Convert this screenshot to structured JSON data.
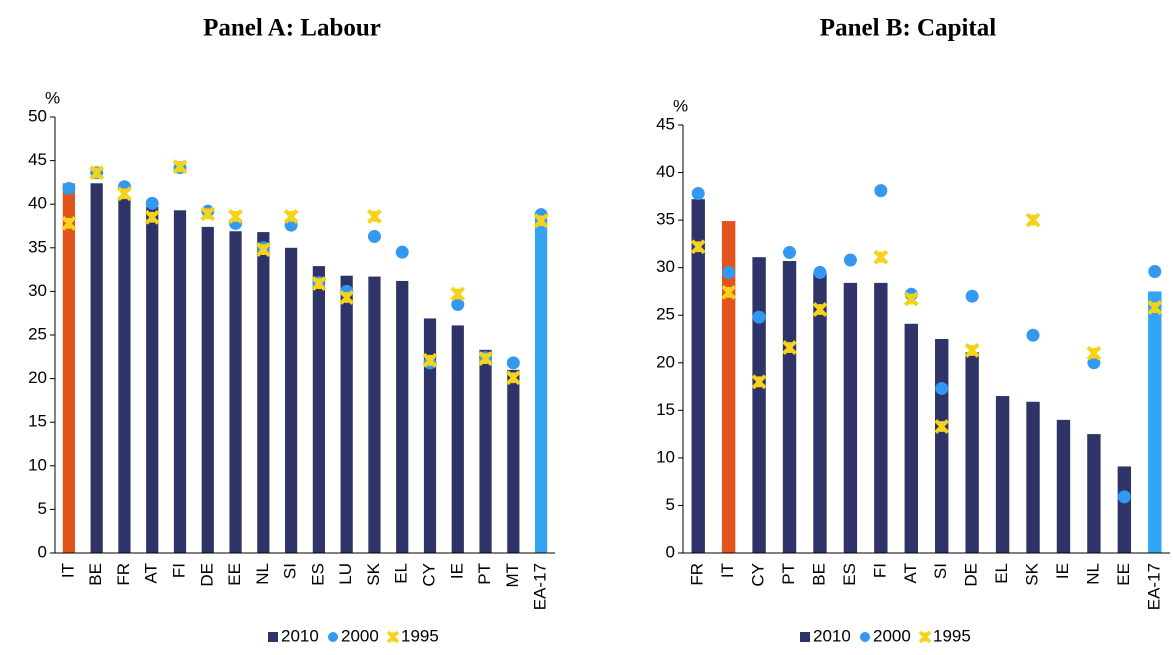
{
  "chart_data": [
    {
      "type": "bar",
      "title": "Panel A: Labour",
      "ylabel": "%",
      "categories": [
        "IT",
        "BE",
        "FR",
        "AT",
        "FI",
        "DE",
        "EE",
        "NL",
        "SI",
        "ES",
        "LU",
        "SK",
        "EL",
        "CY",
        "IE",
        "PT",
        "MT",
        "EA-17"
      ],
      "ylim": [
        0,
        50
      ],
      "yticks": [
        0,
        5,
        10,
        15,
        20,
        25,
        30,
        35,
        40,
        45,
        50
      ],
      "series": [
        {
          "name": "2010",
          "type": "bar",
          "color": "#2e3368",
          "colors": [
            "#e3541c",
            "#2e3368",
            "#2e3368",
            "#2e3368",
            "#2e3368",
            "#2e3368",
            "#2e3368",
            "#2e3368",
            "#2e3368",
            "#2e3368",
            "#2e3368",
            "#2e3368",
            "#2e3368",
            "#2e3368",
            "#2e3368",
            "#2e3368",
            "#2e3368",
            "#33a3f4"
          ],
          "values": [
            42.4,
            42.4,
            40.6,
            39.7,
            39.3,
            37.4,
            36.9,
            36.8,
            35.0,
            32.9,
            31.8,
            31.7,
            31.2,
            26.9,
            26.1,
            23.3,
            21.0,
            38.6
          ]
        },
        {
          "name": "2000",
          "type": "scatter",
          "marker": "circle",
          "color": "#3399f0",
          "values": [
            41.8,
            43.6,
            42.0,
            40.1,
            44.2,
            39.2,
            37.8,
            35.0,
            37.6,
            31.0,
            30.0,
            36.3,
            34.5,
            21.8,
            28.5,
            22.4,
            21.8,
            38.8
          ]
        },
        {
          "name": "1995",
          "type": "scatter",
          "marker": "star",
          "color": "#f5d31b",
          "values": [
            37.8,
            43.6,
            41.2,
            38.5,
            44.3,
            38.9,
            38.6,
            34.8,
            38.6,
            30.9,
            29.3,
            38.6,
            null,
            22.1,
            29.7,
            22.3,
            20.1,
            38.1
          ]
        }
      ]
    },
    {
      "type": "bar",
      "title": "Panel B: Capital",
      "ylabel": "%",
      "categories": [
        "FR",
        "IT",
        "CY",
        "PT",
        "BE",
        "ES",
        "FI",
        "AT",
        "SI",
        "DE",
        "EL",
        "SK",
        "IE",
        "NL",
        "EE",
        "EA-17"
      ],
      "ylim": [
        0,
        45
      ],
      "yticks": [
        0,
        5,
        10,
        15,
        20,
        25,
        30,
        35,
        40,
        45
      ],
      "series": [
        {
          "name": "2010",
          "type": "bar",
          "color": "#2e3368",
          "colors": [
            "#2e3368",
            "#e3541c",
            "#2e3368",
            "#2e3368",
            "#2e3368",
            "#2e3368",
            "#2e3368",
            "#2e3368",
            "#2e3368",
            "#2e3368",
            "#2e3368",
            "#2e3368",
            "#2e3368",
            "#2e3368",
            "#2e3368",
            "#33a3f4"
          ],
          "values": [
            37.2,
            34.9,
            31.1,
            30.7,
            29.4,
            28.4,
            28.4,
            24.1,
            22.5,
            21.1,
            16.5,
            15.9,
            14.0,
            12.5,
            9.1,
            27.5
          ]
        },
        {
          "name": "2000",
          "type": "scatter",
          "marker": "circle",
          "color": "#3399f0",
          "values": [
            37.8,
            29.5,
            24.8,
            31.6,
            29.5,
            30.8,
            38.1,
            27.2,
            17.3,
            27.0,
            null,
            22.9,
            null,
            20.0,
            5.9,
            29.6
          ]
        },
        {
          "name": "1995",
          "type": "scatter",
          "marker": "star",
          "color": "#f5d31b",
          "values": [
            32.2,
            27.4,
            18.0,
            21.6,
            25.6,
            null,
            31.1,
            26.7,
            13.3,
            21.3,
            null,
            35.0,
            null,
            21.0,
            null,
            25.8
          ]
        }
      ]
    }
  ]
}
